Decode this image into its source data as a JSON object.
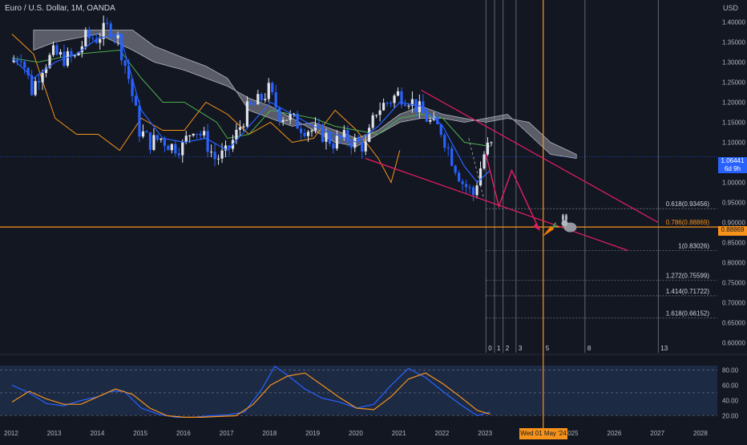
{
  "header": {
    "title": "Euro / U.S. Dollar, 1M, OANDA",
    "currency": "USD"
  },
  "price_tags": {
    "last_price": "1.06441",
    "countdown": "6d 9h",
    "level_0786": "0.88869",
    "date_marker": "Wed 01 May '24"
  },
  "colors": {
    "background": "#131722",
    "bull": "#e0e3eb",
    "bear": "#2962ff",
    "cloud": "#9598a1",
    "baseline": "#4caf50",
    "conversion": "#2962ff",
    "lagging": "#f7931a",
    "trendline": "#e91e63",
    "fib": "#9598a1",
    "accent": "#f7931a"
  },
  "chart_data": [
    {
      "type": "candlestick",
      "ylim": [
        0.575,
        1.455
      ],
      "xlim": [
        2012.0,
        2028.3
      ],
      "y_ticks": [
        "1.40000",
        "1.35000",
        "1.30000",
        "1.25000",
        "1.20000",
        "1.15000",
        "1.10000",
        "1.05000",
        "1.00000",
        "0.95000",
        "0.90000",
        "0.85000",
        "0.80000",
        "0.75000",
        "0.70000",
        "0.65000",
        "0.60000"
      ],
      "x_ticks": [
        "2012",
        "2013",
        "2014",
        "2015",
        "2016",
        "2017",
        "2018",
        "2019",
        "2020",
        "2021",
        "2022",
        "2023",
        "2024",
        "2025",
        "2026",
        "2027",
        "2028"
      ],
      "price_path": [
        [
          2012.0,
          1.3
        ],
        [
          2012.25,
          1.32
        ],
        [
          2012.5,
          1.23
        ],
        [
          2012.75,
          1.29
        ],
        [
          2013.0,
          1.32
        ],
        [
          2013.25,
          1.31
        ],
        [
          2013.5,
          1.31
        ],
        [
          2013.75,
          1.36
        ],
        [
          2014.0,
          1.36
        ],
        [
          2014.3,
          1.39
        ],
        [
          2014.5,
          1.36
        ],
        [
          2014.75,
          1.26
        ],
        [
          2015.0,
          1.13
        ],
        [
          2015.25,
          1.1
        ],
        [
          2015.5,
          1.11
        ],
        [
          2015.75,
          1.09
        ],
        [
          2016.0,
          1.09
        ],
        [
          2016.25,
          1.14
        ],
        [
          2016.5,
          1.11
        ],
        [
          2016.75,
          1.06
        ],
        [
          2017.0,
          1.07
        ],
        [
          2017.25,
          1.12
        ],
        [
          2017.5,
          1.18
        ],
        [
          2017.75,
          1.2
        ],
        [
          2018.0,
          1.23
        ],
        [
          2018.25,
          1.17
        ],
        [
          2018.5,
          1.16
        ],
        [
          2018.75,
          1.14
        ],
        [
          2019.0,
          1.13
        ],
        [
          2019.25,
          1.12
        ],
        [
          2019.5,
          1.1
        ],
        [
          2019.75,
          1.11
        ],
        [
          2020.0,
          1.1
        ],
        [
          2020.25,
          1.09
        ],
        [
          2020.5,
          1.18
        ],
        [
          2020.75,
          1.2
        ],
        [
          2021.0,
          1.22
        ],
        [
          2021.25,
          1.21
        ],
        [
          2021.5,
          1.18
        ],
        [
          2021.75,
          1.15
        ],
        [
          2022.0,
          1.13
        ],
        [
          2022.25,
          1.06
        ],
        [
          2022.5,
          1.0
        ],
        [
          2022.75,
          0.97
        ],
        [
          2023.0,
          1.07
        ],
        [
          2023.1,
          1.09
        ]
      ],
      "ichimoku": {
        "conversion": [
          [
            2012.0,
            1.31
          ],
          [
            2012.5,
            1.26
          ],
          [
            2013.0,
            1.3
          ],
          [
            2013.5,
            1.32
          ],
          [
            2014.0,
            1.36
          ],
          [
            2014.5,
            1.37
          ],
          [
            2015.0,
            1.18
          ],
          [
            2015.5,
            1.11
          ],
          [
            2016.0,
            1.1
          ],
          [
            2016.5,
            1.11
          ],
          [
            2017.0,
            1.08
          ],
          [
            2017.5,
            1.14
          ],
          [
            2018.0,
            1.2
          ],
          [
            2018.5,
            1.17
          ],
          [
            2019.0,
            1.14
          ],
          [
            2019.5,
            1.12
          ],
          [
            2020.0,
            1.1
          ],
          [
            2020.5,
            1.14
          ],
          [
            2021.0,
            1.2
          ],
          [
            2021.5,
            1.19
          ],
          [
            2022.0,
            1.14
          ],
          [
            2022.5,
            1.04
          ],
          [
            2022.8,
            1.0
          ],
          [
            2023.1,
            1.03
          ]
        ],
        "baseline": [
          [
            2012.0,
            1.31
          ],
          [
            2012.6,
            1.3
          ],
          [
            2013.5,
            1.32
          ],
          [
            2014.5,
            1.33
          ],
          [
            2015.0,
            1.26
          ],
          [
            2015.5,
            1.2
          ],
          [
            2016.0,
            1.2
          ],
          [
            2016.75,
            1.15
          ],
          [
            2017.0,
            1.11
          ],
          [
            2017.5,
            1.12
          ],
          [
            2018.0,
            1.18
          ],
          [
            2018.5,
            1.17
          ],
          [
            2019.0,
            1.16
          ],
          [
            2019.5,
            1.14
          ],
          [
            2020.0,
            1.13
          ],
          [
            2020.5,
            1.12
          ],
          [
            2021.0,
            1.16
          ],
          [
            2021.5,
            1.17
          ],
          [
            2022.0,
            1.16
          ],
          [
            2022.5,
            1.1
          ],
          [
            2023.1,
            1.09
          ]
        ],
        "lagging": [
          [
            2012.0,
            1.37
          ],
          [
            2012.5,
            1.32
          ],
          [
            2013.0,
            1.16
          ],
          [
            2013.5,
            1.12
          ],
          [
            2014.0,
            1.12
          ],
          [
            2014.5,
            1.08
          ],
          [
            2015.0,
            1.16
          ],
          [
            2015.5,
            1.13
          ],
          [
            2016.0,
            1.13
          ],
          [
            2016.5,
            1.2
          ],
          [
            2017.0,
            1.17
          ],
          [
            2017.5,
            1.12
          ],
          [
            2018.0,
            1.15
          ],
          [
            2018.5,
            1.1
          ],
          [
            2019.0,
            1.11
          ],
          [
            2019.5,
            1.18
          ],
          [
            2020.0,
            1.13
          ],
          [
            2020.5,
            1.06
          ],
          [
            2020.8,
            1.0
          ],
          [
            2021.0,
            1.08
          ]
        ],
        "span_a": [
          [
            2012.5,
            1.38
          ],
          [
            2013.0,
            1.38
          ],
          [
            2014.0,
            1.38
          ],
          [
            2014.8,
            1.38
          ],
          [
            2015.3,
            1.34
          ],
          [
            2016.0,
            1.31
          ],
          [
            2016.5,
            1.29
          ],
          [
            2017.0,
            1.26
          ],
          [
            2017.5,
            1.18
          ],
          [
            2018.0,
            1.16
          ],
          [
            2018.5,
            1.14
          ],
          [
            2019.0,
            1.15
          ],
          [
            2019.5,
            1.13
          ],
          [
            2020.0,
            1.11
          ],
          [
            2020.5,
            1.13
          ],
          [
            2021.0,
            1.17
          ],
          [
            2021.5,
            1.19
          ],
          [
            2022.0,
            1.17
          ],
          [
            2022.5,
            1.16
          ],
          [
            2023.0,
            1.15
          ],
          [
            2023.5,
            1.16
          ],
          [
            2024.0,
            1.15
          ],
          [
            2024.5,
            1.1
          ],
          [
            2025.1,
            1.07
          ]
        ],
        "span_b": [
          [
            2012.5,
            1.33
          ],
          [
            2013.0,
            1.35
          ],
          [
            2014.0,
            1.37
          ],
          [
            2014.8,
            1.33
          ],
          [
            2015.3,
            1.3
          ],
          [
            2016.0,
            1.28
          ],
          [
            2016.5,
            1.26
          ],
          [
            2017.0,
            1.24
          ],
          [
            2017.5,
            1.21
          ],
          [
            2018.0,
            1.19
          ],
          [
            2018.5,
            1.16
          ],
          [
            2019.0,
            1.13
          ],
          [
            2019.5,
            1.1
          ],
          [
            2020.0,
            1.09
          ],
          [
            2020.5,
            1.12
          ],
          [
            2021.0,
            1.15
          ],
          [
            2021.5,
            1.16
          ],
          [
            2022.0,
            1.16
          ],
          [
            2022.5,
            1.15
          ],
          [
            2023.0,
            1.16
          ],
          [
            2023.5,
            1.17
          ],
          [
            2024.0,
            1.12
          ],
          [
            2024.5,
            1.07
          ],
          [
            2025.1,
            1.06
          ]
        ]
      },
      "last_price": 1.06441,
      "horizontal_level": 0.88869,
      "fib_extension": [
        {
          "label": "0.618(0.93456)",
          "value": 0.93456
        },
        {
          "label": "0.786(0.88869)",
          "value": 0.88869
        },
        {
          "label": "1(0.83026)",
          "value": 0.83026
        },
        {
          "label": "1.272(0.75599)",
          "value": 0.75599
        },
        {
          "label": "1.414(0.71722)",
          "value": 0.71722
        },
        {
          "label": "1.618(0.66152)",
          "value": 0.66152
        }
      ],
      "fib_time_zones": [
        {
          "label": "0",
          "x": 2023.0
        },
        {
          "label": "1",
          "x": 2023.2
        },
        {
          "label": "2",
          "x": 2023.4
        },
        {
          "label": "3",
          "x": 2023.7
        },
        {
          "label": "5",
          "x": 2024.33
        },
        {
          "label": "8",
          "x": 2025.3
        },
        {
          "label": "13",
          "x": 2027.0
        }
      ],
      "channel": {
        "upper": [
          [
            2021.5,
            1.23
          ],
          [
            2027.0,
            0.9
          ]
        ],
        "lower": [
          [
            2020.2,
            1.06
          ],
          [
            2026.3,
            0.83
          ]
        ],
        "inner": [
          [
            2022.6,
            1.11
          ],
          [
            2022.95,
            0.96
          ]
        ]
      },
      "projection_path": [
        [
          2023.0,
          1.07
        ],
        [
          2023.3,
          0.94
        ],
        [
          2023.6,
          1.03
        ],
        [
          2024.25,
          0.88
        ]
      ],
      "time_marker": 2024.33
    },
    {
      "type": "line",
      "ylim": [
        10,
        92
      ],
      "y_ticks": [
        "80.00",
        "60.00",
        "40.00",
        "20.00"
      ],
      "levels": [
        80,
        50,
        20
      ],
      "series": [
        {
          "values": [
            [
              2012.0,
              60
            ],
            [
              2012.4,
              50
            ],
            [
              2012.8,
              36
            ],
            [
              2013.2,
              33
            ],
            [
              2013.6,
              40
            ],
            [
              2014.0,
              45
            ],
            [
              2014.3,
              52
            ],
            [
              2014.6,
              52
            ],
            [
              2015.0,
              30
            ],
            [
              2015.4,
              22
            ],
            [
              2015.8,
              18
            ],
            [
              2016.2,
              18
            ],
            [
              2016.6,
              20
            ],
            [
              2017.0,
              21
            ],
            [
              2017.4,
              25
            ],
            [
              2017.8,
              55
            ],
            [
              2018.1,
              85
            ],
            [
              2018.4,
              73
            ],
            [
              2018.8,
              55
            ],
            [
              2019.2,
              43
            ],
            [
              2019.6,
              38
            ],
            [
              2020.0,
              30
            ],
            [
              2020.4,
              35
            ],
            [
              2020.8,
              60
            ],
            [
              2021.2,
              82
            ],
            [
              2021.6,
              70
            ],
            [
              2022.0,
              52
            ],
            [
              2022.4,
              35
            ],
            [
              2022.8,
              20
            ],
            [
              2023.1,
              25
            ]
          ]
        },
        {
          "values": [
            [
              2012.0,
              38
            ],
            [
              2012.4,
              52
            ],
            [
              2012.8,
              42
            ],
            [
              2013.2,
              35
            ],
            [
              2013.6,
              35
            ],
            [
              2014.0,
              45
            ],
            [
              2014.4,
              55
            ],
            [
              2014.8,
              48
            ],
            [
              2015.2,
              30
            ],
            [
              2015.6,
              20
            ],
            [
              2016.0,
              18
            ],
            [
              2016.4,
              18
            ],
            [
              2016.8,
              19
            ],
            [
              2017.2,
              20
            ],
            [
              2017.6,
              35
            ],
            [
              2018.0,
              60
            ],
            [
              2018.4,
              72
            ],
            [
              2018.8,
              76
            ],
            [
              2019.2,
              60
            ],
            [
              2019.6,
              44
            ],
            [
              2020.0,
              30
            ],
            [
              2020.4,
              28
            ],
            [
              2020.8,
              45
            ],
            [
              2021.2,
              68
            ],
            [
              2021.6,
              76
            ],
            [
              2022.0,
              62
            ],
            [
              2022.4,
              45
            ],
            [
              2022.8,
              27
            ],
            [
              2023.1,
              22
            ]
          ]
        }
      ]
    }
  ]
}
